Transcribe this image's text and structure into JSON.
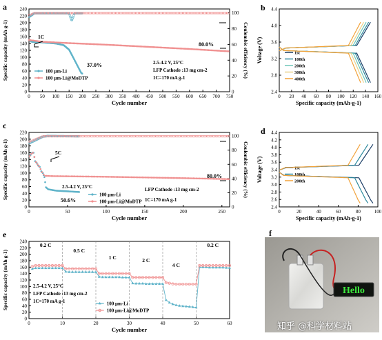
{
  "chart_data": [
    {
      "panel": "a",
      "type": "line",
      "ylabel": "Specific capacity (mAh g-1)",
      "y2label": "Coulombic efficiency (%)",
      "xlabel": "Cycle number",
      "xlim": [
        0,
        750
      ],
      "ylim": [
        0,
        240
      ],
      "y2lim": [
        0,
        105
      ],
      "xticks": [
        0,
        50,
        100,
        150,
        200,
        250,
        300,
        350,
        400,
        450,
        500,
        550,
        600,
        650,
        700,
        750
      ],
      "yticks": [
        0,
        20,
        40,
        60,
        80,
        100,
        120,
        140,
        160,
        180,
        200,
        220,
        240
      ],
      "y2ticks": [
        0,
        20,
        40,
        60,
        80,
        100
      ],
      "annotations": [
        "1C",
        "37.0%",
        "80.0%"
      ],
      "conditions": [
        "2.5-4.2 V, 25°C",
        "LFP Cathode :13 mg cm-2",
        "1C=170 mA g-1"
      ],
      "series": [
        {
          "name": "100 μm-Li",
          "color": "#5fb3c9",
          "capacity": [
            [
              1,
              150
            ],
            [
              10,
              145
            ],
            [
              50,
              143
            ],
            [
              100,
              140
            ],
            [
              130,
              135
            ],
            [
              150,
              122
            ],
            [
              165,
              100
            ],
            [
              175,
              85
            ],
            [
              185,
              70
            ],
            [
              195,
              55
            ],
            [
              200,
              52
            ]
          ],
          "ce": [
            [
              1,
              95
            ],
            [
              20,
              99.5
            ],
            [
              150,
              99.5
            ],
            [
              160,
              90
            ],
            [
              170,
              99.5
            ],
            [
              200,
              99.5
            ]
          ]
        },
        {
          "name": "100 μm-Li@MoDTP",
          "color": "#f09090",
          "capacity": [
            [
              1,
              150
            ],
            [
              50,
              145
            ],
            [
              150,
              141
            ],
            [
              300,
              136
            ],
            [
              450,
              130
            ],
            [
              600,
              124
            ],
            [
              750,
              117
            ]
          ],
          "ce": [
            [
              1,
              97
            ],
            [
              20,
              99.8
            ],
            [
              750,
              99.8
            ]
          ]
        }
      ]
    },
    {
      "panel": "b",
      "type": "line",
      "xlabel": "Specific capacity (mAh·g-1)",
      "ylabel": "Voltage (V)",
      "xlim": [
        0,
        160
      ],
      "ylim": [
        2.4,
        4.4
      ],
      "xticks": [
        0,
        20,
        40,
        60,
        80,
        100,
        120,
        140,
        160
      ],
      "yticks": [
        2.4,
        2.8,
        3.2,
        3.6,
        4.0,
        4.4
      ],
      "series": [
        {
          "name": "1st",
          "color": "#1a3d66",
          "capacity": 148
        },
        {
          "name": "100th",
          "color": "#2e8a9e",
          "capacity": 145
        },
        {
          "name": "200th",
          "color": "#6ec6b8",
          "capacity": 141
        },
        {
          "name": "300th",
          "color": "#ead18a",
          "capacity": 137
        },
        {
          "name": "400th",
          "color": "#f2a23a",
          "capacity": 132
        }
      ]
    },
    {
      "panel": "c",
      "type": "line",
      "ylabel": "Specific capacity (mAh g-1)",
      "y2label": "Coulombic efficiency (%)",
      "xlabel": "Cycle number",
      "xlim": [
        0,
        260
      ],
      "ylim": [
        0,
        220
      ],
      "y2lim": [
        0,
        105
      ],
      "xticks": [
        0,
        50,
        100,
        150,
        200,
        250
      ],
      "yticks": [
        0,
        20,
        40,
        60,
        80,
        100,
        120,
        140,
        160,
        180,
        200,
        220
      ],
      "y2ticks": [
        0,
        20,
        40,
        60,
        80,
        100
      ],
      "annotations": [
        "5C",
        "50.6%",
        "80.0%"
      ],
      "conditions": [
        "2.5-4.2 V, 25°C",
        "LFP Cathode :13 mg cm-2",
        "1C=170 mA g-1"
      ],
      "series": [
        {
          "name": "100 μm-Li",
          "color": "#5fb3c9",
          "capacity": [
            [
              1,
              150
            ],
            [
              4,
              160
            ],
            [
              6,
              160
            ],
            [
              8,
              135
            ],
            [
              10,
              130
            ],
            [
              12,
              122
            ],
            [
              14,
              118
            ],
            [
              16,
              105
            ],
            [
              18,
              100
            ],
            [
              20,
              88
            ],
            [
              22,
              58
            ],
            [
              25,
              52
            ],
            [
              35,
              48
            ],
            [
              50,
              46
            ],
            [
              65,
              44
            ]
          ],
          "ce": [
            [
              1,
              90
            ],
            [
              18,
              99
            ],
            [
              22,
              99.5
            ],
            [
              24,
              100
            ],
            [
              65,
              99.5
            ]
          ]
        },
        {
          "name": "100 μm-Li@MoDTP",
          "color": "#f09090",
          "capacity": [
            [
              1,
              150
            ],
            [
              4,
              160
            ],
            [
              6,
              160
            ],
            [
              8,
              135
            ],
            [
              10,
              130
            ],
            [
              12,
              122
            ],
            [
              14,
              118
            ],
            [
              16,
              105
            ],
            [
              18,
              100
            ],
            [
              20,
              92
            ],
            [
              30,
              91
            ],
            [
              100,
              89
            ],
            [
              200,
              85
            ],
            [
              260,
              82
            ]
          ],
          "ce": [
            [
              1,
              92
            ],
            [
              18,
              99.5
            ],
            [
              260,
              99.5
            ]
          ]
        }
      ]
    },
    {
      "panel": "d",
      "type": "line",
      "xlabel": "Specific capacity (mAh·g-1)",
      "ylabel": "Voltage (V)",
      "xlim": [
        0,
        100
      ],
      "ylim": [
        2.4,
        4.4
      ],
      "xticks": [
        0,
        20,
        40,
        60,
        80,
        100
      ],
      "yticks": [
        2.4,
        2.6,
        2.8,
        3.0,
        3.2,
        3.4,
        3.6,
        3.8,
        4.0,
        4.2,
        4.4
      ],
      "series": [
        {
          "name": "1st",
          "color": "#1a3d66",
          "capacity": 95
        },
        {
          "name": "100th",
          "color": "#2e8a9e",
          "capacity": 90
        },
        {
          "name": "200th",
          "color": "#f2a23a",
          "capacity": 82
        }
      ]
    },
    {
      "panel": "e",
      "type": "scatter",
      "ylabel": "Specific capacity (mAh g-1)",
      "xlabel": "Cycle number",
      "xlim": [
        0,
        60
      ],
      "ylim": [
        0,
        240
      ],
      "xticks": [
        0,
        10,
        20,
        30,
        40,
        50,
        60
      ],
      "yticks": [
        0,
        20,
        40,
        60,
        80,
        100,
        120,
        140,
        160,
        180,
        200,
        220,
        240
      ],
      "rates": [
        {
          "label": "0.2 C",
          "x": 5
        },
        {
          "label": "0.5 C",
          "x": 15
        },
        {
          "label": "1 C",
          "x": 25
        },
        {
          "label": "2 C",
          "x": 35
        },
        {
          "label": "4 C",
          "x": 44
        },
        {
          "label": "0.2 C",
          "x": 55
        }
      ],
      "conditions": [
        "2.5-4.2 V, 25°C",
        "LFP Cathode :13 mg cm-2",
        "1C=170 mA g-1"
      ],
      "series": [
        {
          "name": "100 μm-Li",
          "color": "#5fb3c9",
          "values": [
            155,
            157,
            157,
            157,
            157,
            157,
            157,
            157,
            157,
            157,
            146,
            145,
            145,
            145,
            145,
            145,
            145,
            145,
            145,
            145,
            130,
            129,
            129,
            129,
            129,
            129,
            129,
            128,
            128,
            128,
            110,
            109,
            109,
            109,
            108,
            108,
            108,
            108,
            108,
            108,
            58,
            50,
            45,
            42,
            40,
            39,
            38,
            37,
            36,
            35,
            160,
            160,
            160,
            159,
            159,
            159,
            159,
            159,
            158,
            158
          ]
        },
        {
          "name": "100 μm-Li@MoDTP",
          "color": "#f09090",
          "values": [
            162,
            165,
            165,
            165,
            165,
            165,
            165,
            165,
            165,
            165,
            155,
            155,
            155,
            155,
            155,
            155,
            155,
            155,
            155,
            155,
            140,
            140,
            140,
            140,
            140,
            140,
            140,
            140,
            140,
            140,
            128,
            128,
            128,
            128,
            128,
            128,
            128,
            128,
            128,
            128,
            112,
            110,
            108,
            107,
            107,
            107,
            107,
            107,
            107,
            107,
            165,
            165,
            165,
            165,
            165,
            165,
            165,
            165,
            165,
            165
          ]
        }
      ]
    }
  ],
  "photo": {
    "panel": "f",
    "display_text": "Hello"
  },
  "watermark": "知乎 @科学材料站"
}
